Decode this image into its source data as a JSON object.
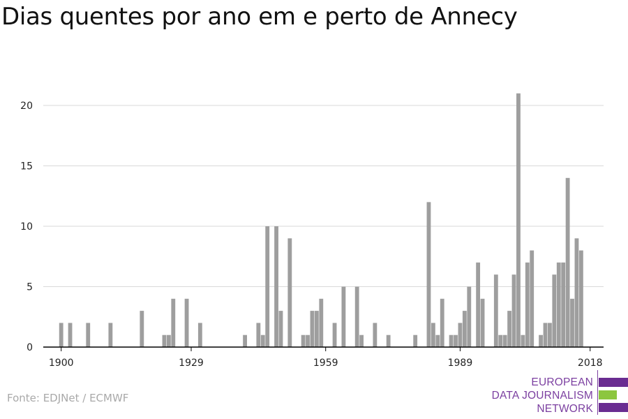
{
  "title": "Dias quentes por ano em e perto de Annecy",
  "source": "Fonte: EDJNet / ECMWF",
  "logo": {
    "line1": "EUROPEAN",
    "line2": "DATA JOURNALISM",
    "line3": "NETWORK",
    "purple": "#6a2c91",
    "green": "#8cc63f"
  },
  "colors": {
    "bar": "#9e9e9e",
    "grid": "#d9d9d9",
    "axis": "#000000",
    "text": "#222222"
  },
  "chart_data": {
    "type": "bar",
    "title": "Dias quentes por ano em e perto de Annecy",
    "xlabel": "",
    "ylabel": "",
    "x_ticks": [
      1900,
      1929,
      1959,
      1989,
      2018
    ],
    "y_ticks": [
      0,
      5,
      10,
      15,
      20
    ],
    "ylim": [
      0,
      22
    ],
    "grid": true,
    "x": [
      1900,
      1902,
      1906,
      1911,
      1918,
      1923,
      1924,
      1925,
      1928,
      1931,
      1941,
      1944,
      1945,
      1946,
      1948,
      1949,
      1951,
      1954,
      1955,
      1956,
      1957,
      1958,
      1961,
      1963,
      1966,
      1967,
      1970,
      1973,
      1979,
      1982,
      1983,
      1984,
      1985,
      1987,
      1988,
      1989,
      1990,
      1991,
      1993,
      1994,
      1997,
      1998,
      1999,
      2000,
      2001,
      2002,
      2003,
      2004,
      2005,
      2007,
      2008,
      2009,
      2010,
      2011,
      2012,
      2013,
      2014,
      2015,
      2016,
      2017
    ],
    "values": [
      2,
      2,
      2,
      2,
      3,
      1,
      1,
      4,
      4,
      2,
      1,
      2,
      1,
      10,
      10,
      3,
      9,
      1,
      1,
      3,
      3,
      4,
      2,
      5,
      5,
      1,
      2,
      1,
      1,
      12,
      2,
      1,
      4,
      1,
      1,
      2,
      3,
      5,
      7,
      4,
      6,
      1,
      1,
      3,
      6,
      21,
      1,
      7,
      8,
      1,
      2,
      2,
      6,
      7,
      7,
      14,
      4,
      9,
      8,
      0
    ]
  }
}
